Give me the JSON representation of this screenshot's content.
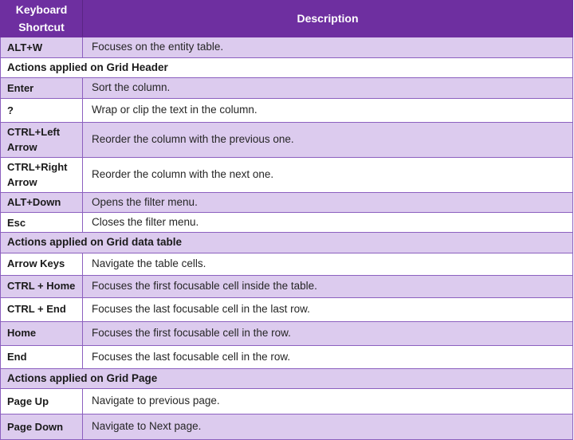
{
  "colors": {
    "header-bg": "#6e2fa0",
    "header-divider": "#5a2585",
    "row-shaded-bg": "#dccbee",
    "row-plain-bg": "#ffffff",
    "border": "#8c60bf",
    "header-text": "#ffffff",
    "text": "#262626"
  },
  "table": {
    "columns": [
      {
        "label": "Keyboard Shortcut"
      },
      {
        "label": "Description"
      }
    ],
    "rows": [
      {
        "type": "item",
        "shortcut": "ALT+W",
        "description": "Focuses on the entity table."
      },
      {
        "type": "section",
        "label": "Actions applied on Grid Header"
      },
      {
        "type": "item",
        "shortcut": "Enter",
        "description": "Sort the column."
      },
      {
        "type": "item",
        "shortcut": "?",
        "description": "Wrap or clip the text in the column."
      },
      {
        "type": "item",
        "shortcut": "CTRL+Left Arrow",
        "description": "Reorder the column with the previous one."
      },
      {
        "type": "item",
        "shortcut": "CTRL+Right Arrow",
        "description": "Reorder the column with the next one."
      },
      {
        "type": "item",
        "shortcut": "ALT+Down",
        "description": "Opens the filter menu."
      },
      {
        "type": "item",
        "shortcut": "Esc",
        "description": "Closes the filter menu."
      },
      {
        "type": "section",
        "label": "Actions applied on Grid data table"
      },
      {
        "type": "item",
        "shortcut": "Arrow Keys",
        "description": "Navigate the table cells."
      },
      {
        "type": "item",
        "shortcut": "CTRL + Home",
        "description": "Focuses the first focusable cell inside the table."
      },
      {
        "type": "item",
        "shortcut": "CTRL + End",
        "description": "Focuses the last focusable cell in the last row."
      },
      {
        "type": "item",
        "shortcut": "Home",
        "description": "Focuses the first focusable cell in the row."
      },
      {
        "type": "item",
        "shortcut": "End",
        "description": "Focuses the last focusable cell in the row."
      },
      {
        "type": "section",
        "label": "Actions applied on Grid Page"
      },
      {
        "type": "item",
        "shortcut": "Page Up",
        "description": "Navigate to previous page."
      },
      {
        "type": "item",
        "shortcut": "Page Down",
        "description": "Navigate to Next page."
      }
    ]
  }
}
